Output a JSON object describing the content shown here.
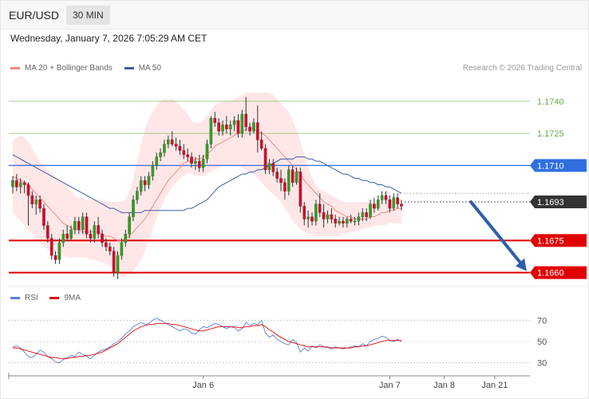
{
  "header": {
    "symbol": "EUR/USD",
    "interval": "30 MIN"
  },
  "datetime": "Wednesday, January 7, 2026 7:05:29 AM CET",
  "credit": "Research © 2026 Trading Central",
  "legend": {
    "main": [
      {
        "label": "MA 20 + Bollinger Bands",
        "color": "#f28b82"
      },
      {
        "label": "MA 50",
        "color": "#3b5ea8"
      }
    ],
    "rsi": [
      {
        "label": "RSI",
        "color": "#5b7fd6"
      },
      {
        "label": "9MA",
        "color": "#e00000"
      }
    ]
  },
  "chart_data": {
    "type": "candlestick",
    "ylim": [
      1.1655,
      1.175
    ],
    "levels": [
      {
        "label": "1.1740",
        "value": 1.174,
        "color": "#6aa84f",
        "style": "thin"
      },
      {
        "label": "1.1725",
        "value": 1.1725,
        "color": "#6aa84f",
        "style": "thin"
      },
      {
        "label": "1.1710",
        "value": 1.171,
        "color": "#2f6fe0",
        "style": "line-badge"
      },
      {
        "label": "1.1693",
        "value": 1.1693,
        "color": "#333333",
        "style": "dotted-badge"
      },
      {
        "label": "1.1675",
        "value": 1.1675,
        "color": "#e00000",
        "style": "bold-badge"
      },
      {
        "label": "1.1660",
        "value": 1.166,
        "color": "#e00000",
        "style": "bold-badge"
      }
    ],
    "x_labels": [
      {
        "label": "Jan 6",
        "index": 49
      },
      {
        "label": "Jan 7",
        "index": 97
      },
      {
        "label": "Jan 8",
        "index": 111
      },
      {
        "label": "Jan 21",
        "index": 124
      }
    ],
    "candles": [
      [
        1.17,
        1.1705,
        1.1697,
        1.1703
      ],
      [
        1.1703,
        1.1706,
        1.1698,
        1.17
      ],
      [
        1.17,
        1.1704,
        1.1697,
        1.1702
      ],
      [
        1.1702,
        1.1703,
        1.1697,
        1.1701
      ],
      [
        1.1701,
        1.1702,
        1.1682,
        1.1696
      ],
      [
        1.1696,
        1.1698,
        1.169,
        1.1692
      ],
      [
        1.1692,
        1.1696,
        1.1687,
        1.1694
      ],
      [
        1.1694,
        1.1696,
        1.1688,
        1.169
      ],
      [
        1.169,
        1.1692,
        1.168,
        1.1682
      ],
      [
        1.1682,
        1.1684,
        1.1674,
        1.1676
      ],
      [
        1.1676,
        1.1678,
        1.1666,
        1.1668
      ],
      [
        1.1668,
        1.167,
        1.1664,
        1.1666
      ],
      [
        1.1666,
        1.1676,
        1.1664,
        1.1674
      ],
      [
        1.1674,
        1.168,
        1.1672,
        1.1678
      ],
      [
        1.1678,
        1.1682,
        1.1675,
        1.1676
      ],
      [
        1.1676,
        1.1682,
        1.1675,
        1.168
      ],
      [
        1.168,
        1.1686,
        1.1678,
        1.1684
      ],
      [
        1.1684,
        1.1686,
        1.1678,
        1.168
      ],
      [
        1.168,
        1.1688,
        1.1678,
        1.1686
      ],
      [
        1.1686,
        1.1688,
        1.1676,
        1.1678
      ],
      [
        1.1678,
        1.168,
        1.1674,
        1.1676
      ],
      [
        1.1676,
        1.1684,
        1.1674,
        1.1682
      ],
      [
        1.1682,
        1.1686,
        1.1676,
        1.1678
      ],
      [
        1.1678,
        1.168,
        1.1672,
        1.1674
      ],
      [
        1.1674,
        1.1676,
        1.167,
        1.1672
      ],
      [
        1.1672,
        1.1674,
        1.1668,
        1.167
      ],
      [
        1.167,
        1.1672,
        1.1658,
        1.166
      ],
      [
        1.166,
        1.167,
        1.1657,
        1.1668
      ],
      [
        1.1668,
        1.1676,
        1.1666,
        1.1674
      ],
      [
        1.1674,
        1.168,
        1.1672,
        1.1678
      ],
      [
        1.1678,
        1.1688,
        1.1676,
        1.1686
      ],
      [
        1.1686,
        1.1696,
        1.1684,
        1.1694
      ],
      [
        1.1694,
        1.17,
        1.1692,
        1.1698
      ],
      [
        1.1698,
        1.1705,
        1.1696,
        1.1703
      ],
      [
        1.1703,
        1.1705,
        1.1698,
        1.1701
      ],
      [
        1.1701,
        1.1707,
        1.1699,
        1.1705
      ],
      [
        1.1705,
        1.1712,
        1.1703,
        1.171
      ],
      [
        1.171,
        1.1716,
        1.1708,
        1.1714
      ],
      [
        1.1714,
        1.1718,
        1.1712,
        1.1716
      ],
      [
        1.1716,
        1.1722,
        1.1714,
        1.172
      ],
      [
        1.172,
        1.1724,
        1.1718,
        1.1722
      ],
      [
        1.1722,
        1.1726,
        1.1719,
        1.172
      ],
      [
        1.172,
        1.1723,
        1.1717,
        1.1719
      ],
      [
        1.1719,
        1.1722,
        1.1715,
        1.1717
      ],
      [
        1.1717,
        1.172,
        1.1713,
        1.1715
      ],
      [
        1.1715,
        1.1718,
        1.1712,
        1.1714
      ],
      [
        1.1714,
        1.1716,
        1.1709,
        1.1711
      ],
      [
        1.1711,
        1.1714,
        1.1708,
        1.1712
      ],
      [
        1.1712,
        1.1715,
        1.1707,
        1.1709
      ],
      [
        1.1709,
        1.1715,
        1.1707,
        1.1713
      ],
      [
        1.1713,
        1.1722,
        1.1711,
        1.172
      ],
      [
        1.172,
        1.1733,
        1.1718,
        1.1732
      ],
      [
        1.1732,
        1.1735,
        1.1728,
        1.173
      ],
      [
        1.173,
        1.1732,
        1.1724,
        1.1726
      ],
      [
        1.1726,
        1.1731,
        1.1724,
        1.1729
      ],
      [
        1.1729,
        1.1733,
        1.1725,
        1.1727
      ],
      [
        1.1727,
        1.1731,
        1.1724,
        1.1729
      ],
      [
        1.1729,
        1.1733,
        1.1726,
        1.1731
      ],
      [
        1.1731,
        1.1734,
        1.1723,
        1.1725
      ],
      [
        1.1725,
        1.1736,
        1.1723,
        1.1734
      ],
      [
        1.1734,
        1.1742,
        1.1726,
        1.1728
      ],
      [
        1.1728,
        1.173,
        1.1724,
        1.1726
      ],
      [
        1.1726,
        1.1732,
        1.1725,
        1.173
      ],
      [
        1.173,
        1.1738,
        1.1716,
        1.1722
      ],
      [
        1.1722,
        1.1726,
        1.1717,
        1.1718
      ],
      [
        1.1718,
        1.172,
        1.1706,
        1.1708
      ],
      [
        1.1708,
        1.1713,
        1.1706,
        1.1711
      ],
      [
        1.1711,
        1.1713,
        1.1705,
        1.1707
      ],
      [
        1.1707,
        1.1709,
        1.1702,
        1.1704
      ],
      [
        1.1704,
        1.1708,
        1.1698,
        1.1702
      ],
      [
        1.1702,
        1.1704,
        1.1694,
        1.1698
      ],
      [
        1.1698,
        1.171,
        1.1696,
        1.1708
      ],
      [
        1.1708,
        1.171,
        1.17,
        1.1702
      ],
      [
        1.1702,
        1.1709,
        1.1701,
        1.1707
      ],
      [
        1.1707,
        1.1709,
        1.1688,
        1.1691
      ],
      [
        1.1691,
        1.1693,
        1.1682,
        1.1685
      ],
      [
        1.1685,
        1.1689,
        1.1681,
        1.1686
      ],
      [
        1.1686,
        1.1688,
        1.1682,
        1.1684
      ],
      [
        1.1684,
        1.1694,
        1.1682,
        1.1692
      ],
      [
        1.1692,
        1.1697,
        1.1686,
        1.1688
      ],
      [
        1.1688,
        1.1692,
        1.1681,
        1.1685
      ],
      [
        1.1685,
        1.1689,
        1.1683,
        1.1687
      ],
      [
        1.1687,
        1.169,
        1.1683,
        1.1685
      ],
      [
        1.1685,
        1.1687,
        1.1681,
        1.1683
      ],
      [
        1.1683,
        1.1686,
        1.1682,
        1.1684
      ],
      [
        1.1684,
        1.1686,
        1.1681,
        1.1683
      ],
      [
        1.1683,
        1.1686,
        1.1681,
        1.1685
      ],
      [
        1.1685,
        1.1687,
        1.1683,
        1.1684
      ],
      [
        1.1684,
        1.1686,
        1.1682,
        1.1684
      ],
      [
        1.1684,
        1.1688,
        1.1682,
        1.1686
      ],
      [
        1.1686,
        1.169,
        1.1684,
        1.1688
      ],
      [
        1.1688,
        1.169,
        1.1684,
        1.1686
      ],
      [
        1.1686,
        1.1694,
        1.1685,
        1.1692
      ],
      [
        1.1692,
        1.1695,
        1.1688,
        1.169
      ],
      [
        1.169,
        1.1696,
        1.1689,
        1.1694
      ],
      [
        1.1694,
        1.1698,
        1.1692,
        1.1696
      ],
      [
        1.1696,
        1.1698,
        1.1692,
        1.1694
      ],
      [
        1.1694,
        1.1696,
        1.1688,
        1.169
      ],
      [
        1.169,
        1.1697,
        1.1689,
        1.1695
      ],
      [
        1.1695,
        1.1697,
        1.169,
        1.1692
      ],
      [
        1.1692,
        1.1694,
        1.1689,
        1.1691
      ]
    ],
    "ma20": [
      1.1705,
      1.1704,
      1.1703,
      1.1702,
      1.1701,
      1.1699,
      1.1697,
      1.1695,
      1.1693,
      1.1691,
      1.1689,
      1.1687,
      1.1685,
      1.1683,
      1.1682,
      1.1681,
      1.168,
      1.168,
      1.1679,
      1.1679,
      1.1679,
      1.1679,
      1.1679,
      1.1678,
      1.1677,
      1.1677,
      1.1676,
      1.1675,
      1.1675,
      1.1676,
      1.1677,
      1.1679,
      1.1681,
      1.1683,
      1.1685,
      1.1688,
      1.1691,
      1.1694,
      1.1697,
      1.17,
      1.1703,
      1.1705,
      1.1707,
      1.1709,
      1.1711,
      1.1712,
      1.1712,
      1.1713,
      1.1713,
      1.1714,
      1.1715,
      1.1717,
      1.1719,
      1.172,
      1.1721,
      1.1722,
      1.1723,
      1.1724,
      1.1725,
      1.1726,
      1.1727,
      1.1727,
      1.1727,
      1.1726,
      1.1725,
      1.1724,
      1.1722,
      1.172,
      1.1718,
      1.1716,
      1.1714,
      1.1712,
      1.171,
      1.1708,
      1.1706,
      1.1703,
      1.1701,
      1.1699,
      1.1697,
      1.1695,
      1.1693,
      1.1692,
      1.1691,
      1.1689,
      1.1688,
      1.1687,
      1.1686,
      1.1686,
      1.1685,
      1.1685,
      1.1685,
      1.1685,
      1.1686,
      1.1686,
      1.1687,
      1.1688,
      1.1688,
      1.1689,
      1.1689,
      1.169,
      1.169
    ],
    "bb_upper": [
      1.1722,
      1.1723,
      1.1724,
      1.1723,
      1.1721,
      1.1718,
      1.1715,
      1.1712,
      1.171,
      1.1708,
      1.1706,
      1.1705,
      1.1703,
      1.1702,
      1.17,
      1.1698,
      1.1696,
      1.1695,
      1.1695,
      1.1694,
      1.1694,
      1.1694,
      1.1694,
      1.1694,
      1.1693,
      1.1693,
      1.1693,
      1.1693,
      1.1693,
      1.1694,
      1.1698,
      1.1704,
      1.1712,
      1.172,
      1.1727,
      1.1732,
      1.1735,
      1.1738,
      1.174,
      1.1741,
      1.1741,
      1.1741,
      1.174,
      1.1738,
      1.1736,
      1.1734,
      1.1731,
      1.173,
      1.173,
      1.1731,
      1.1733,
      1.1736,
      1.1738,
      1.1739,
      1.174,
      1.174,
      1.174,
      1.1741,
      1.1742,
      1.1743,
      1.1744,
      1.1744,
      1.1744,
      1.1744,
      1.1744,
      1.1744,
      1.1744,
      1.1743,
      1.1741,
      1.1739,
      1.1737,
      1.1735,
      1.1731,
      1.1727,
      1.1721,
      1.1715,
      1.1709,
      1.1704,
      1.1701,
      1.1699,
      1.1698,
      1.1697,
      1.1696,
      1.1695,
      1.1694,
      1.1693,
      1.1693,
      1.1693,
      1.1693,
      1.1693,
      1.1693,
      1.1693,
      1.1693,
      1.1693,
      1.1693,
      1.1694,
      1.1694,
      1.1694,
      1.1694,
      1.1694,
      1.1694
    ],
    "bb_lower": [
      1.1688,
      1.1686,
      1.1684,
      1.1682,
      1.168,
      1.1678,
      1.1676,
      1.1674,
      1.1672,
      1.1671,
      1.167,
      1.1669,
      1.1668,
      1.1668,
      1.1667,
      1.1667,
      1.1667,
      1.1667,
      1.1667,
      1.1667,
      1.1666,
      1.1666,
      1.1665,
      1.1665,
      1.1664,
      1.1663,
      1.1661,
      1.1659,
      1.1658,
      1.1658,
      1.1659,
      1.1661,
      1.1663,
      1.1666,
      1.167,
      1.1675,
      1.168,
      1.1686,
      1.169,
      1.1694,
      1.1697,
      1.17,
      1.1702,
      1.1704,
      1.1705,
      1.1706,
      1.1706,
      1.1705,
      1.1705,
      1.1705,
      1.1706,
      1.1707,
      1.1708,
      1.1709,
      1.171,
      1.171,
      1.171,
      1.171,
      1.171,
      1.1709,
      1.1708,
      1.1707,
      1.1706,
      1.1704,
      1.1702,
      1.17,
      1.1698,
      1.1697,
      1.1695,
      1.1693,
      1.169,
      1.1687,
      1.1684,
      1.1682,
      1.168,
      1.1679,
      1.1678,
      1.1678,
      1.1677,
      1.1677,
      1.1677,
      1.1677,
      1.1677,
      1.1677,
      1.1677,
      1.1678,
      1.1678,
      1.1679,
      1.1679,
      1.168,
      1.168,
      1.1681,
      1.1681,
      1.1682,
      1.1682,
      1.1682,
      1.1682,
      1.1683,
      1.1683,
      1.1683,
      1.1683
    ],
    "ma50": [
      1.1715,
      1.1714,
      1.1713,
      1.1712,
      1.1711,
      1.171,
      1.1709,
      1.1708,
      1.1707,
      1.1706,
      1.1705,
      1.1704,
      1.1703,
      1.1702,
      1.1701,
      1.17,
      1.1699,
      1.1698,
      1.1697,
      1.1696,
      1.1695,
      1.1694,
      1.1693,
      1.1692,
      1.1691,
      1.169,
      1.169,
      1.1689,
      1.1688,
      1.1688,
      1.1688,
      1.1688,
      1.1688,
      1.1688,
      1.1689,
      1.1689,
      1.1689,
      1.1689,
      1.1689,
      1.1689,
      1.1689,
      1.1689,
      1.1689,
      1.1689,
      1.1689,
      1.169,
      1.169,
      1.1691,
      1.1692,
      1.1693,
      1.1694,
      1.1696,
      1.1698,
      1.17,
      1.1701,
      1.1702,
      1.1703,
      1.1704,
      1.1705,
      1.1706,
      1.1706,
      1.1707,
      1.1707,
      1.1708,
      1.1708,
      1.1709,
      1.171,
      1.1711,
      1.1712,
      1.1713,
      1.1713,
      1.1713,
      1.1713,
      1.1714,
      1.1714,
      1.1714,
      1.1713,
      1.1713,
      1.1712,
      1.1712,
      1.1711,
      1.171,
      1.1709,
      1.1708,
      1.1707,
      1.1706,
      1.1706,
      1.1705,
      1.1704,
      1.1704,
      1.1703,
      1.1703,
      1.1702,
      1.1702,
      1.1701,
      1.1701,
      1.17,
      1.17,
      1.1699,
      1.1698,
      1.1697
    ],
    "forecast": {
      "from": 1.1693,
      "to": 1.166
    },
    "rsi": {
      "ylim": [
        20,
        80
      ],
      "ticks": [
        70,
        50,
        30
      ],
      "rsi": [
        45,
        46,
        44,
        40,
        36,
        35,
        38,
        42,
        40,
        36,
        34,
        31,
        30,
        33,
        35,
        37,
        36,
        40,
        38,
        36,
        34,
        37,
        40,
        42,
        43,
        45,
        48,
        50,
        53,
        57,
        60,
        64,
        66,
        68,
        66,
        67,
        70,
        72,
        70,
        68,
        66,
        64,
        62,
        60,
        62,
        61,
        58,
        57,
        61,
        64,
        63,
        65,
        67,
        66,
        64,
        62,
        64,
        63,
        60,
        62,
        68,
        65,
        67,
        66,
        70,
        58,
        54,
        56,
        52,
        50,
        48,
        47,
        52,
        49,
        40,
        44,
        41,
        46,
        44,
        47,
        45,
        44,
        43,
        45,
        44,
        43,
        44,
        45,
        46,
        45,
        48,
        46,
        50,
        52,
        53,
        55,
        54,
        51,
        50,
        52,
        50
      ],
      "ma9": [
        44,
        44,
        43,
        42,
        41,
        40,
        39,
        38,
        37,
        36,
        35,
        35,
        34,
        34,
        34,
        35,
        35,
        36,
        36,
        37,
        37,
        38,
        39,
        40,
        42,
        44,
        46,
        48,
        51,
        54,
        57,
        60,
        62,
        64,
        65,
        66,
        66,
        67,
        67,
        67,
        67,
        66,
        66,
        65,
        64,
        63,
        62,
        61,
        60,
        60,
        61,
        62,
        63,
        64,
        64,
        64,
        64,
        64,
        63,
        63,
        64,
        64,
        65,
        65,
        66,
        64,
        61,
        59,
        56,
        54,
        52,
        50,
        49,
        48,
        47,
        46,
        45,
        45,
        45,
        45,
        45,
        45,
        44,
        44,
        44,
        44,
        44,
        44,
        45,
        45,
        46,
        46,
        47,
        48,
        49,
        50,
        51,
        51,
        51,
        51,
        51
      ]
    }
  }
}
